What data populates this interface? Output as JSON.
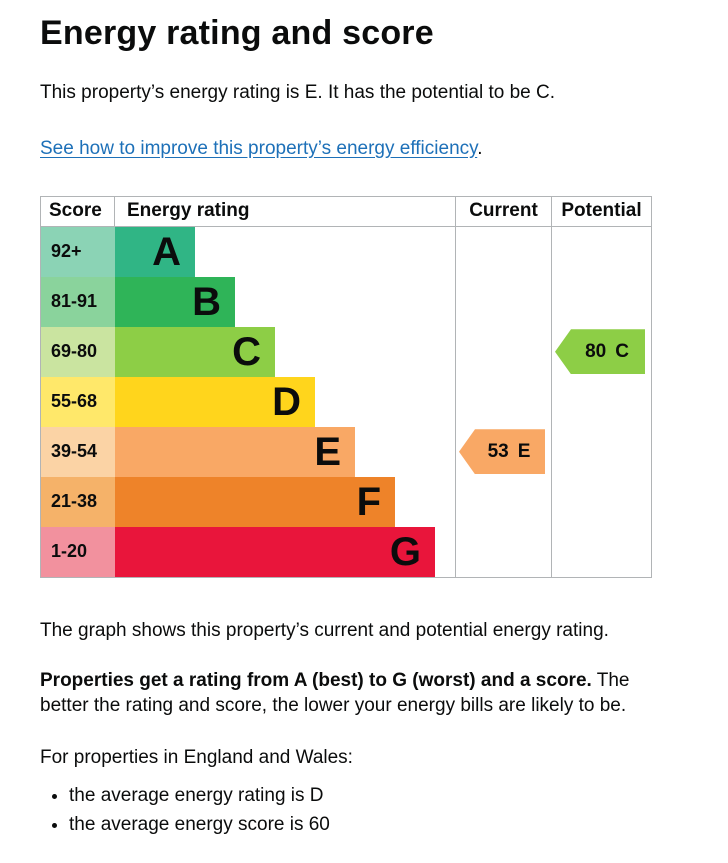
{
  "page": {
    "title": "Energy rating and score",
    "intro": "This property’s energy rating is E. It has the potential to be C.",
    "improve_link": {
      "text": "See how to improve this property’s energy efficiency",
      "suffix": "."
    },
    "caption": "The graph shows this property’s current and potential energy rating.",
    "explanation": {
      "bold": "Properties get a rating from A (best) to G (worst) and a score.",
      "rest": " The better the rating and score, the lower your energy bills are likely to be."
    },
    "region_note": "For properties in England and Wales:",
    "bullets": [
      "the average energy rating is D",
      "the average energy score is 60"
    ]
  },
  "chart_data": {
    "type": "bar",
    "title": "Energy rating and score",
    "columns": {
      "score": "Score",
      "rating": "Energy rating",
      "current": "Current",
      "potential": "Potential"
    },
    "bands": [
      {
        "letter": "A",
        "range": "92+",
        "color": "#30b585",
        "tint": "#8bd3b5"
      },
      {
        "letter": "B",
        "range": "81-91",
        "color": "#2fb458",
        "tint": "#8ad39c"
      },
      {
        "letter": "C",
        "range": "69-80",
        "color": "#8dce46",
        "tint": "#cae4a0"
      },
      {
        "letter": "D",
        "range": "55-68",
        "color": "#ffd51c",
        "tint": "#ffe86a"
      },
      {
        "letter": "E",
        "range": "39-54",
        "color": "#f9a865",
        "tint": "#fbd3a5"
      },
      {
        "letter": "F",
        "range": "21-38",
        "color": "#ee8329",
        "tint": "#f5b269"
      },
      {
        "letter": "G",
        "range": "1-20",
        "color": "#e9153b",
        "tint": "#f2919e"
      }
    ],
    "current": {
      "score": "53",
      "band": "E",
      "row": 4,
      "color": "#f9a865"
    },
    "potential": {
      "score": "80",
      "band": "C",
      "row": 2,
      "color": "#8dce46"
    }
  }
}
